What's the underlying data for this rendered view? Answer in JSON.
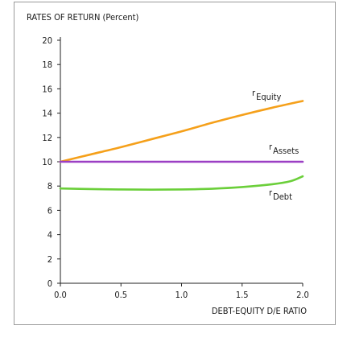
{
  "chart_data": {
    "type": "line",
    "title": "RATES OF RETURN (Percent)",
    "xlabel": "DEBT-EQUITY D/E RATIO",
    "ylabel": "",
    "xlim": [
      0,
      2
    ],
    "ylim": [
      0,
      20
    ],
    "x_ticks": [
      "0.0",
      "0.5",
      "1.0",
      "1.5",
      "2.0"
    ],
    "y_ticks": [
      "0",
      "2",
      "4",
      "6",
      "8",
      "10",
      "12",
      "14",
      "16",
      "18",
      "20"
    ],
    "grid": false,
    "series": [
      {
        "name": "r",
        "subscript": "Equity",
        "color": "#f5a01a",
        "x": [
          0,
          0.25,
          0.5,
          0.75,
          1.0,
          1.25,
          1.5,
          1.75,
          2.0
        ],
        "y": [
          10.0,
          10.6,
          11.2,
          11.85,
          12.5,
          13.2,
          13.85,
          14.45,
          15.0
        ]
      },
      {
        "name": "r",
        "subscript": "Assets",
        "color": "#9b3fc4",
        "x": [
          0,
          0.5,
          1.0,
          1.5,
          2.0
        ],
        "y": [
          10.0,
          10.0,
          10.0,
          10.0,
          10.0
        ]
      },
      {
        "name": "r",
        "subscript": "Debt",
        "color": "#6bcf3a",
        "x": [
          0,
          0.25,
          0.5,
          0.75,
          1.0,
          1.25,
          1.5,
          1.75,
          1.9,
          2.0
        ],
        "y": [
          7.8,
          7.75,
          7.72,
          7.7,
          7.72,
          7.78,
          7.92,
          8.15,
          8.4,
          8.8
        ]
      }
    ]
  }
}
